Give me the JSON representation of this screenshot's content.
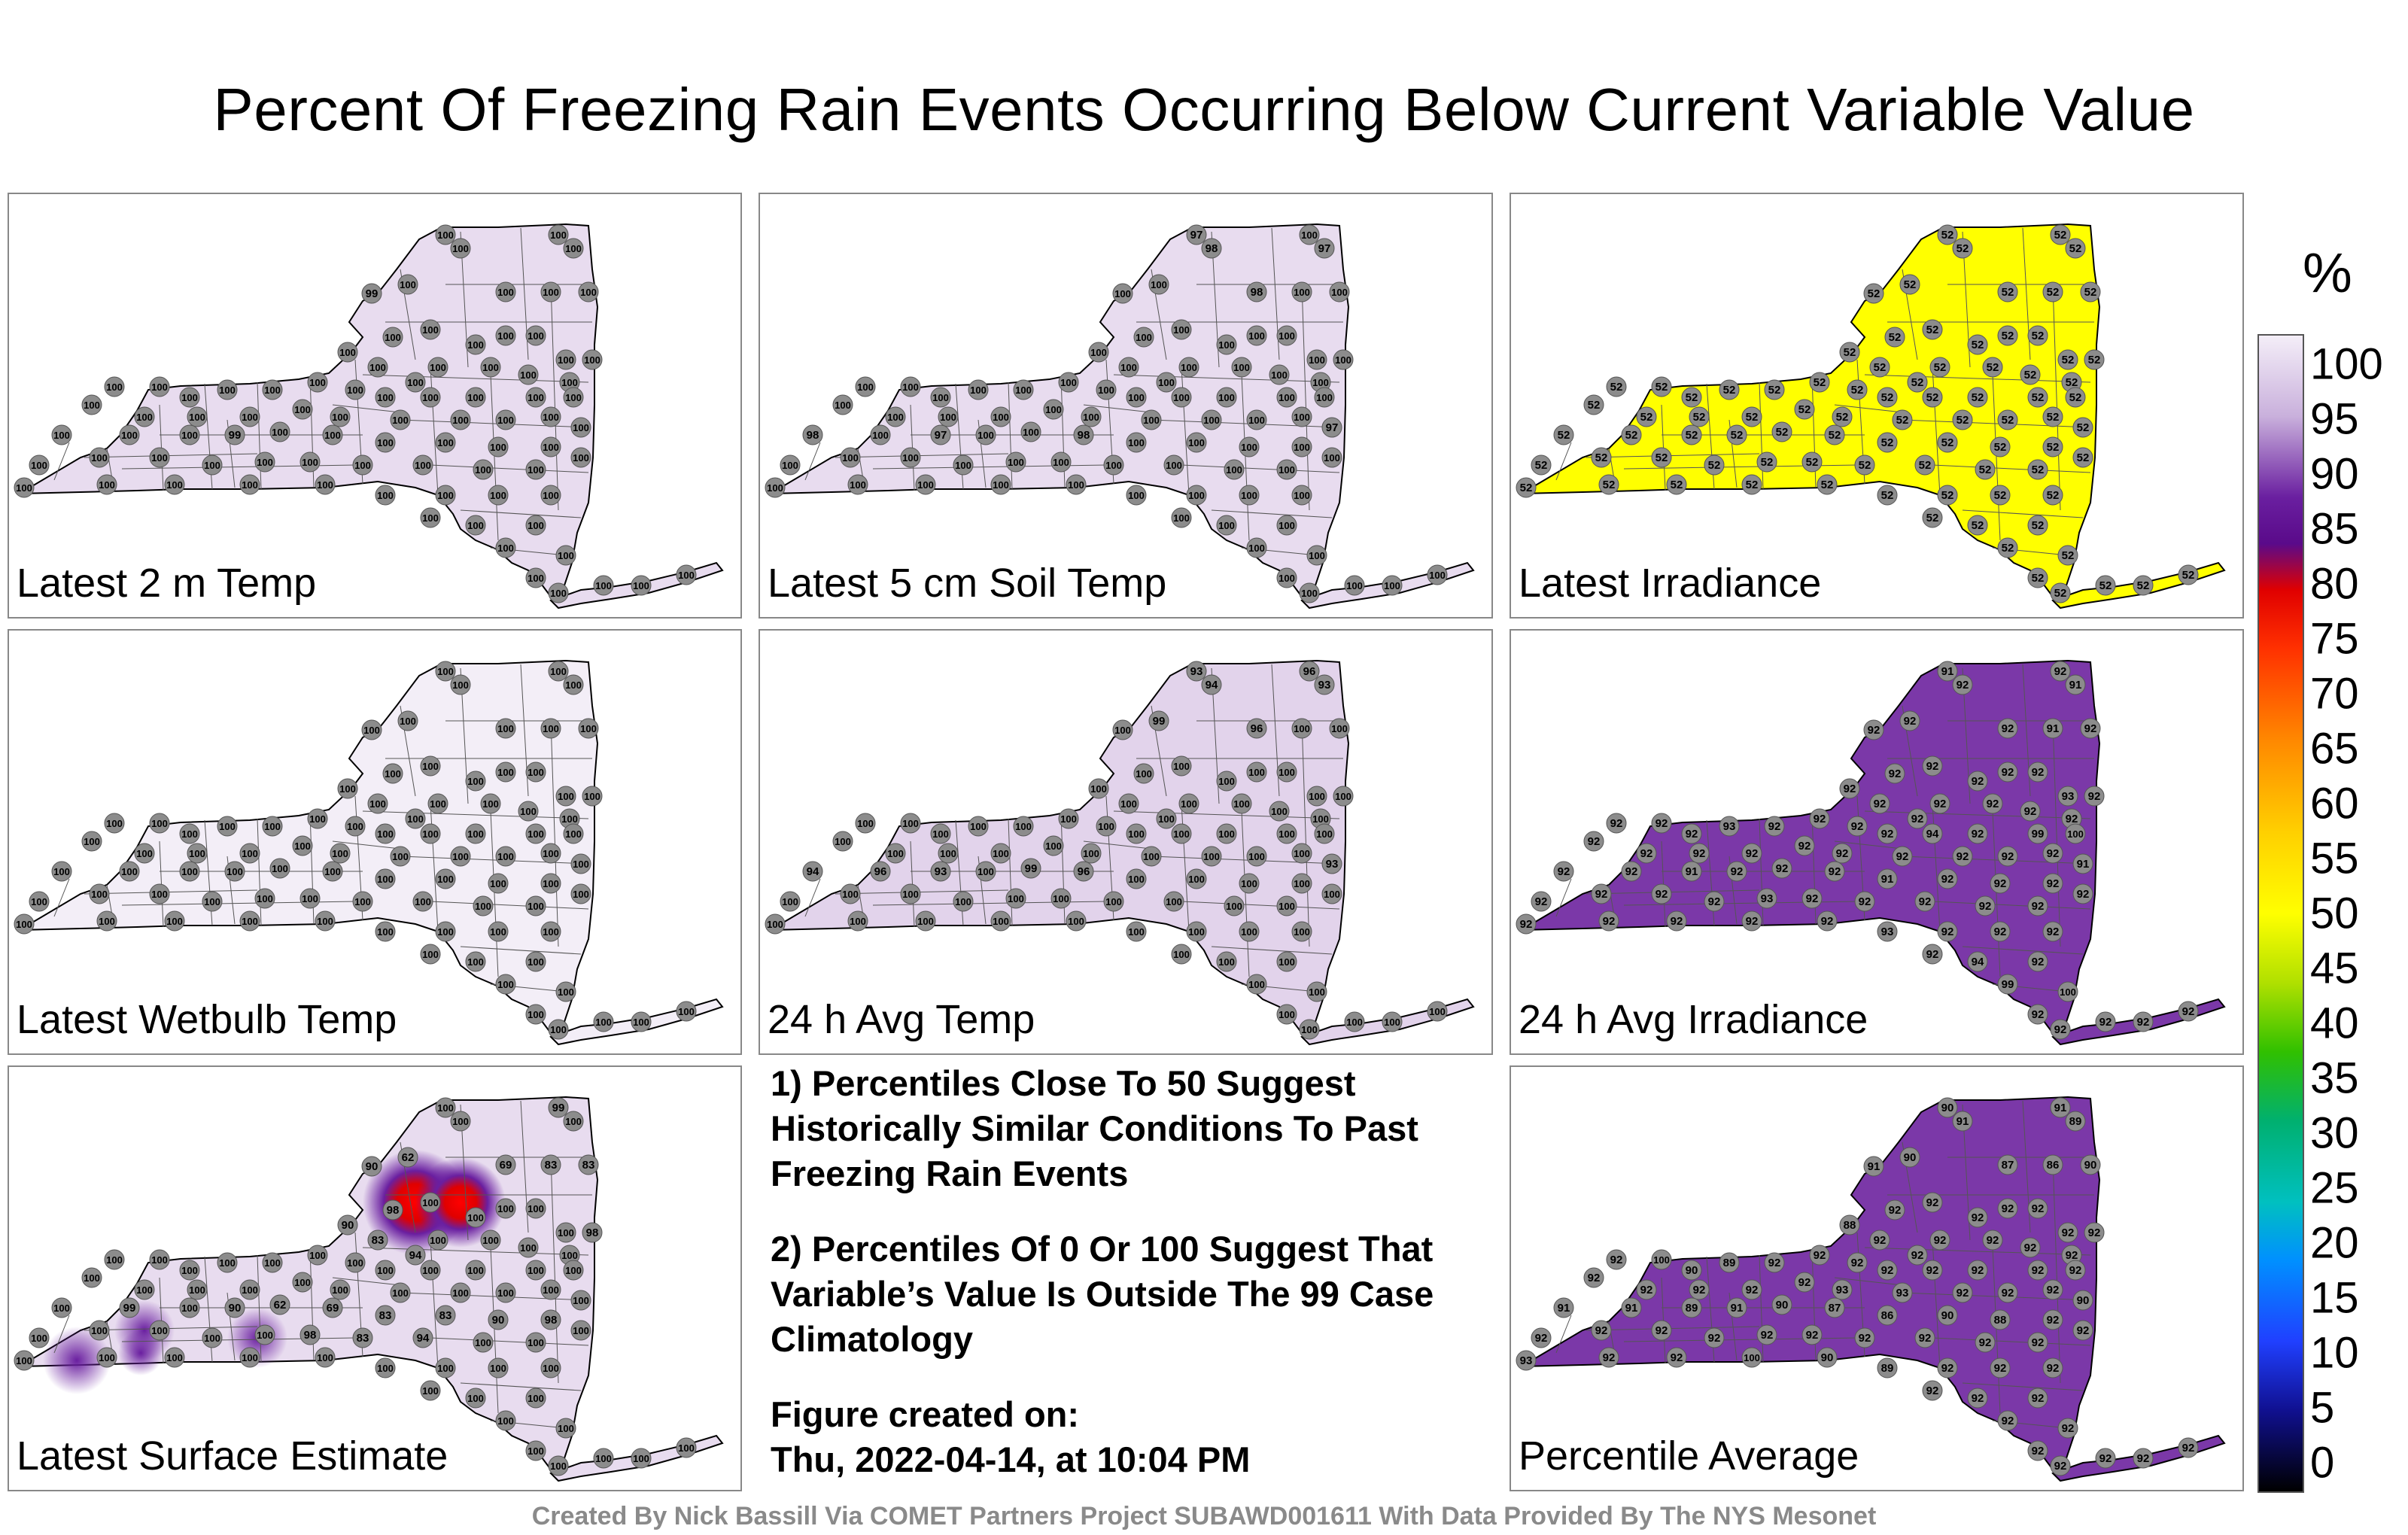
{
  "title": "Percent Of Freezing Rain Events Occurring Below Current Variable Value",
  "panels": [
    {
      "label": "Latest 2 m Temp",
      "fill": "#e8dcef",
      "text_color": "#000",
      "hot": false
    },
    {
      "label": "Latest 5 cm Soil Temp",
      "fill": "#e8dcef",
      "text_color": "#000",
      "hot": false
    },
    {
      "label": "Latest Irradiance",
      "fill": "#ffff00",
      "text_color": "#000",
      "hot": false
    },
    {
      "label": "Latest Wetbulb Temp",
      "fill": "#f3eef7",
      "text_color": "#000",
      "hot": false
    },
    {
      "label": "24 h Avg Temp",
      "fill": "#e2d3eb",
      "text_color": "#000",
      "hot": false
    },
    {
      "label": "24 h Avg Irradiance",
      "fill": "#7b38a8",
      "text_color": "#000",
      "hot": false
    },
    {
      "label": "Latest Surface Estimate",
      "fill": "#e8dcef",
      "text_color": "#000",
      "hot": true
    },
    {
      "label": "Percentile Average",
      "fill": "#7b38a8",
      "text_color": "#000",
      "hot": false
    }
  ],
  "notes": {
    "n1": "1) Percentiles Close To 50 Suggest Historically Similar Conditions To Past Freezing Rain Events",
    "n2": "2) Percentiles Of 0 Or 100 Suggest That Variable’s Value Is Outside The 99 Case Climatology",
    "n3a": "Figure created on:",
    "n3b": "Thu, 2022-04-14, at 10:04 PM"
  },
  "credit": "Created By Nick Bassill Via COMET Partners Project SUBAWD001611 With Data Provided By The NYS Mesonet",
  "colorbar": {
    "unit": "%",
    "ticks": [
      "100",
      "95",
      "90",
      "85",
      "80",
      "75",
      "70",
      "65",
      "60",
      "55",
      "50",
      "45",
      "40",
      "35",
      "30",
      "25",
      "20",
      "15",
      "10",
      "5",
      "0"
    ]
  },
  "station_values": {
    "p1": [
      "100",
      "100",
      "100",
      "100",
      "99",
      "100",
      "100",
      "100",
      "100",
      "100",
      "100",
      "100",
      "100",
      "100",
      "100",
      "100",
      "100",
      "100",
      "100",
      "100",
      "100",
      "100",
      "100",
      "100",
      "100",
      "100",
      "100",
      "100",
      "100",
      "100",
      "100",
      "100",
      "100",
      "100",
      "100",
      "100",
      "100",
      "100",
      "100",
      "100",
      "100",
      "100",
      "100",
      "100",
      "100"
    ],
    "p2": [
      "97",
      "98",
      "100",
      "97",
      "100",
      "100",
      "98",
      "100",
      "100",
      "100",
      "100",
      "100",
      "100",
      "100",
      "100",
      "100",
      "100",
      "100",
      "100",
      "100",
      "100",
      "100",
      "100",
      "100",
      "100",
      "100",
      "100",
      "100",
      "100",
      "100",
      "100",
      "100",
      "100",
      "100",
      "100",
      "100",
      "100",
      "100",
      "100",
      "100",
      "100",
      "100",
      "100",
      "100",
      "100"
    ],
    "p3": [
      "52",
      "52",
      "52",
      "52",
      "52",
      "52",
      "52",
      "52",
      "52",
      "52",
      "52",
      "52",
      "52",
      "52",
      "52",
      "52",
      "52",
      "52",
      "52",
      "52",
      "52",
      "52",
      "52",
      "52",
      "52",
      "52",
      "52",
      "52",
      "52",
      "52",
      "52",
      "52",
      "52",
      "52",
      "52",
      "52",
      "52",
      "52",
      "52",
      "52",
      "52",
      "52",
      "52",
      "52",
      "52"
    ],
    "p4": [
      "100",
      "100",
      "100",
      "100",
      "100",
      "100",
      "100",
      "100",
      "100",
      "100",
      "100",
      "100",
      "100",
      "100",
      "100",
      "100",
      "100",
      "100",
      "100",
      "100",
      "100",
      "100",
      "100",
      "100",
      "100",
      "100",
      "100",
      "100",
      "100",
      "100",
      "100",
      "100",
      "100",
      "100",
      "100",
      "100",
      "100",
      "100",
      "100",
      "100",
      "100",
      "100",
      "100",
      "100",
      "100"
    ],
    "p5": [
      "93",
      "94",
      "96",
      "93",
      "100",
      "99",
      "96",
      "100",
      "100",
      "100",
      "100",
      "100",
      "100",
      "100",
      "100",
      "100",
      "100",
      "100",
      "100",
      "100",
      "100",
      "100",
      "100",
      "100",
      "100",
      "100",
      "100",
      "100",
      "100",
      "100",
      "100",
      "100",
      "100",
      "100",
      "100",
      "100",
      "100",
      "100",
      "100",
      "100",
      "100",
      "100",
      "100",
      "100",
      "100"
    ],
    "p6": [
      "91",
      "92",
      "92",
      "91",
      "92",
      "92",
      "92",
      "91",
      "92",
      "92",
      "92",
      "92",
      "92",
      "92",
      "92",
      "93",
      "92",
      "92",
      "92",
      "92",
      "92",
      "92",
      "92",
      "92",
      "92",
      "92",
      "93",
      "92",
      "92",
      "92",
      "92",
      "94",
      "92",
      "99",
      "100",
      "92",
      "92",
      "92",
      "92",
      "92",
      "92",
      "92",
      "92",
      "92",
      "92"
    ],
    "p7": [
      "100",
      "100",
      "99",
      "100",
      "90",
      "62",
      "69",
      "83",
      "83",
      "90",
      "98",
      "100",
      "100",
      "100",
      "100",
      "100",
      "98",
      "83",
      "94",
      "100",
      "100",
      "100",
      "100",
      "100",
      "100",
      "100",
      "100",
      "100",
      "100",
      "100",
      "100",
      "100",
      "100",
      "100",
      "100",
      "100",
      "100",
      "100",
      "100",
      "100",
      "100",
      "100",
      "100",
      "100",
      "100"
    ],
    "p8": [
      "90",
      "91",
      "91",
      "89",
      "91",
      "90",
      "87",
      "86",
      "90",
      "88",
      "92",
      "92",
      "92",
      "92",
      "92",
      "92",
      "92",
      "92",
      "92",
      "92",
      "92",
      "92",
      "92",
      "92",
      "100",
      "90",
      "89",
      "92",
      "92",
      "92",
      "92",
      "92",
      "92",
      "92",
      "92",
      "92",
      "92",
      "92",
      "92",
      "92",
      "93",
      "93",
      "92",
      "92",
      "92"
    ]
  }
}
